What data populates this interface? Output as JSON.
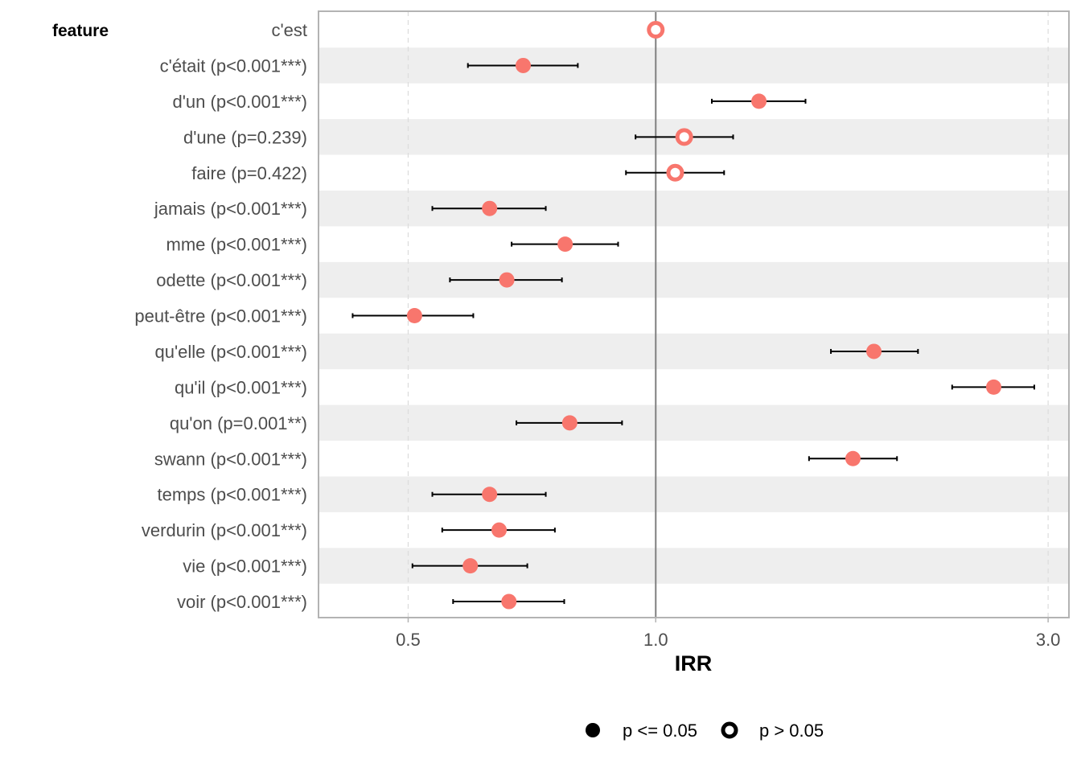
{
  "chart_data": {
    "type": "scatter",
    "subtype": "forest-plot",
    "title": "",
    "xlabel": "IRR",
    "ylabel": "feature",
    "x_scale": "log",
    "xlim": [
      0.389,
      3.18
    ],
    "x_ticks": [
      0.5,
      1.0,
      3.0
    ],
    "x_tick_labels": [
      "0.5",
      "1.0",
      "3.0"
    ],
    "reference_line": 1.0,
    "grid": "vertical dashed at ticks",
    "alternating_row_bands": true,
    "point_color": "#F8766D",
    "legend": {
      "placement": "bottom",
      "entries": [
        {
          "label": "p <= 0.05",
          "shape": "filled-circle"
        },
        {
          "label": "p > 0.05",
          "shape": "open-circle"
        }
      ]
    },
    "rows": [
      {
        "label": "c'est",
        "irr": 1.0,
        "lo": null,
        "hi": null,
        "significant": false
      },
      {
        "label": "c'était (p<0.001***)",
        "irr": 0.69,
        "lo": 0.591,
        "hi": 0.804,
        "significant": true
      },
      {
        "label": "d'un (p<0.001***)",
        "irr": 1.335,
        "lo": 1.17,
        "hi": 1.521,
        "significant": true
      },
      {
        "label": "d'une (p=0.239)",
        "irr": 1.083,
        "lo": 0.945,
        "hi": 1.242,
        "significant": false
      },
      {
        "label": "faire (p=0.422)",
        "irr": 1.056,
        "lo": 0.92,
        "hi": 1.211,
        "significant": false
      },
      {
        "label": "jamais (p<0.001***)",
        "irr": 0.628,
        "lo": 0.535,
        "hi": 0.735,
        "significant": true
      },
      {
        "label": "mme (p<0.001***)",
        "irr": 0.776,
        "lo": 0.668,
        "hi": 0.9,
        "significant": true
      },
      {
        "label": "odette (p<0.001***)",
        "irr": 0.659,
        "lo": 0.562,
        "hi": 0.769,
        "significant": true
      },
      {
        "label": "peut-être (p<0.001***)",
        "irr": 0.509,
        "lo": 0.428,
        "hi": 0.6,
        "significant": true
      },
      {
        "label": "qu'elle (p<0.001***)",
        "irr": 1.842,
        "lo": 1.633,
        "hi": 2.084,
        "significant": true
      },
      {
        "label": "qu'il (p<0.001***)",
        "irr": 2.576,
        "lo": 2.293,
        "hi": 2.886,
        "significant": true
      },
      {
        "label": "qu'on (p=0.001**)",
        "irr": 0.786,
        "lo": 0.677,
        "hi": 0.91,
        "significant": true
      },
      {
        "label": "swann (p<0.001***)",
        "irr": 1.737,
        "lo": 1.536,
        "hi": 1.965,
        "significant": true
      },
      {
        "label": "temps (p<0.001***)",
        "irr": 0.628,
        "lo": 0.535,
        "hi": 0.735,
        "significant": true
      },
      {
        "label": "verdurin (p<0.001***)",
        "irr": 0.645,
        "lo": 0.55,
        "hi": 0.754,
        "significant": true
      },
      {
        "label": "vie (p<0.001***)",
        "irr": 0.595,
        "lo": 0.506,
        "hi": 0.698,
        "significant": true
      },
      {
        "label": "voir (p<0.001***)",
        "irr": 0.663,
        "lo": 0.567,
        "hi": 0.774,
        "significant": true
      }
    ]
  }
}
